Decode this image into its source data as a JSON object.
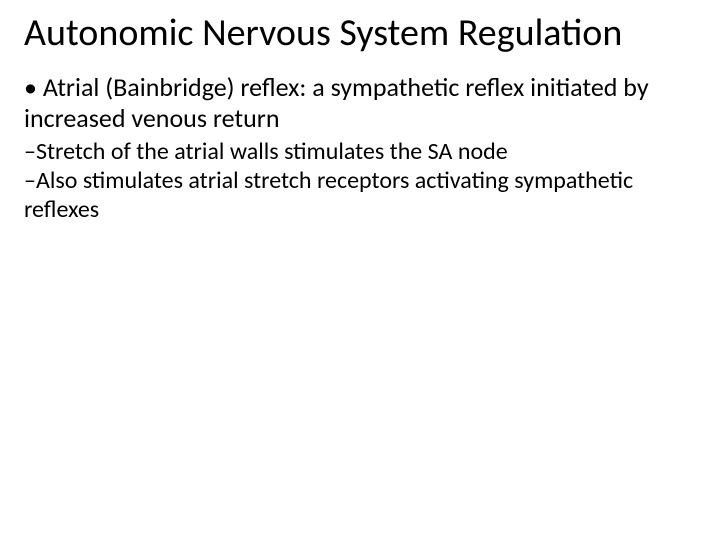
{
  "slide": {
    "title": "Autonomic Nervous System Regulation",
    "bullet_main_prefix": "• ",
    "bullet_main": "Atrial (Bainbridge) reflex: a sympathetic reflex initiated by increased venous return",
    "bullet_sub1_prefix": "–",
    "bullet_sub1": "Stretch of the atrial walls stimulates the SA node",
    "bullet_sub2_prefix": "–",
    "bullet_sub2": "Also stimulates atrial stretch receptors activating sympathetic reflexes"
  },
  "style": {
    "background_color": "#ffffff",
    "text_color": "#000000",
    "title_fontsize": 38,
    "main_fontsize": 26,
    "sub_fontsize": 24,
    "font_family": "Calibri"
  }
}
